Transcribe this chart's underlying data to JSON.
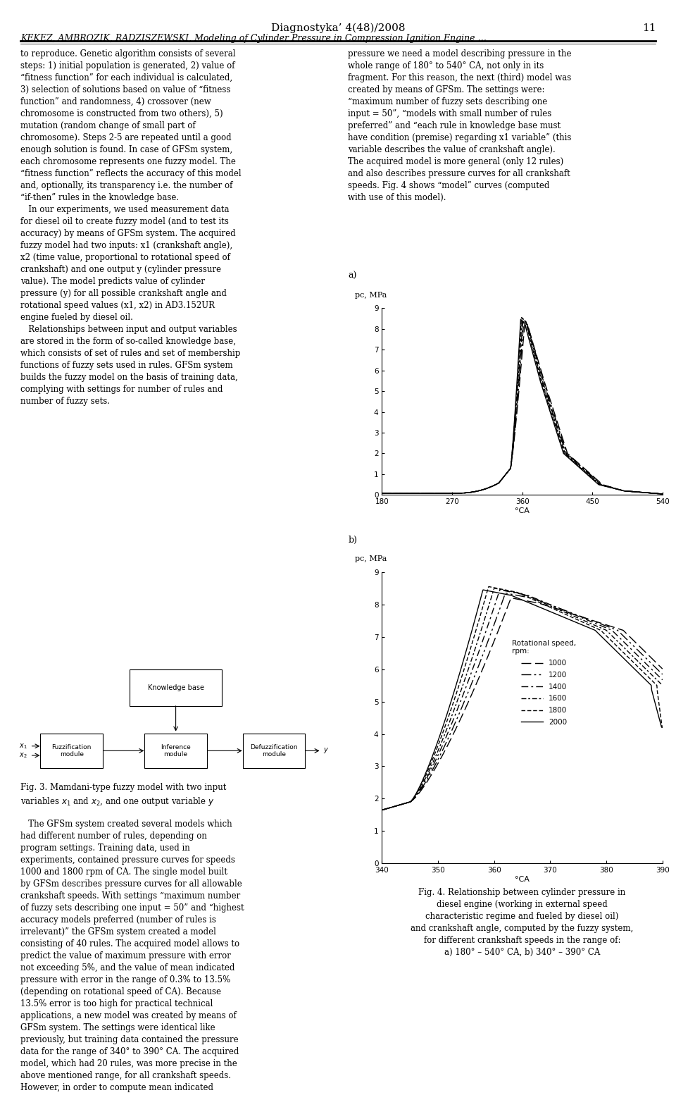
{
  "fig_width": 9.6,
  "fig_height": 15.61,
  "dpi": 100,
  "bg": "#ffffff",
  "header_title": "Diagnostyka’ 4(48)/2008",
  "header_page": "11",
  "header_subtitle": "KEKEZ, AMBROZIK, RADZISZEWSKI, Modeling of Cylinder Pressure in Compression Ignition Engine …",
  "chart_a": {
    "label": "a)",
    "ylabel": "pc, MPa",
    "xlabel": "°CA",
    "xlim": [
      180,
      540
    ],
    "ylim": [
      0,
      9
    ],
    "yticks": [
      0,
      1,
      2,
      3,
      4,
      5,
      6,
      7,
      8,
      9
    ],
    "xticks": [
      180,
      270,
      360,
      450,
      540
    ]
  },
  "chart_b": {
    "label": "b)",
    "ylabel": "pc, MPa",
    "xlabel": "°CA",
    "xlim": [
      340,
      390
    ],
    "ylim": [
      0,
      9
    ],
    "yticks": [
      0,
      1,
      2,
      3,
      4,
      5,
      6,
      7,
      8,
      9
    ],
    "xticks": [
      340,
      350,
      360,
      370,
      380,
      390
    ]
  },
  "speeds": [
    1000,
    1200,
    1400,
    1600,
    1800,
    2000
  ],
  "legend_title": "Rotational speed,\nrpm:",
  "caption_line1": "Fig. 4. Relationship between cylinder pressure in",
  "caption_line2": "diesel engine (working in external speed",
  "caption_line3": "characteristic regime and fueled by diesel oil)",
  "caption_line4": "and crankshaft angle, computed by the fuzzy system,",
  "caption_line5": "for different crankshaft speeds in the range of:",
  "caption_line6": "a) 180° – 540° CA, b) 340° – 390° CA",
  "left_col_text": "to reproduce. Genetic algorithm consists of several\nsteps: 1) initial population is generated, 2) value of\n“fitness function” for each individual is calculated,\n3) selection of solutions based on value of “fitness\nfunction” and randomness, 4) crossover (new\nchromosome is constructed from two others), 5)\nmutation (random change of small part of\nchromosome). Steps 2-5 are repeated until a good\nenough solution is found. In case of GFSm system,\neach chromosome represents one fuzzy model. The\n“fitness function” reflects the accuracy of this model\nand, optionally, its transparency i.e. the number of\n“if-then” rules in the knowledge base.\n   In our experiments, we used measurement data\nfor diesel oil to create fuzzy model (and to test its\naccuracy) by means of GFSm system. The acquired\nfuzzy model had two inputs: x1 (crankshaft angle),\nx2 (time value, proportional to rotational speed of\ncrankshaft) and one output y (cylinder pressure\nvalue). The model predicts value of cylinder\npressure (y) for all possible crankshaft angle and\nrotational speed values (x1, x2) in AD3.152UR\nengine fueled by diesel oil.\n   Relationships between input and output variables\nare stored in the form of so-called knowledge base,\nwhich consists of set of rules and set of membership\nfunctions of fuzzy sets used in rules. GFSm system\nbuilds the fuzzy model on the basis of training data,\ncomplying with settings for number of rules and\nnumber of fuzzy sets.",
  "right_col_text_top": "pressure we need a model describing pressure in the\nwhole range of 180° to 540° CA, not only in its\nfragment. For this reason, the next (third) model was\ncreated by means of GFSm. The settings were:\n“maximum number of fuzzy sets describing one\ninput = 50”, “models with small number of rules\npreferred” and “each rule in knowledge base must\nhave condition (premise) regarding x1 variable” (this\nvariable describes the value of crankshaft angle).\nThe acquired model is more general (only 12 rules)\nand also describes pressure curves for all crankshaft\nspeeds. Fig. 4 shows “model” curves (computed\nwith use of this model)."
}
